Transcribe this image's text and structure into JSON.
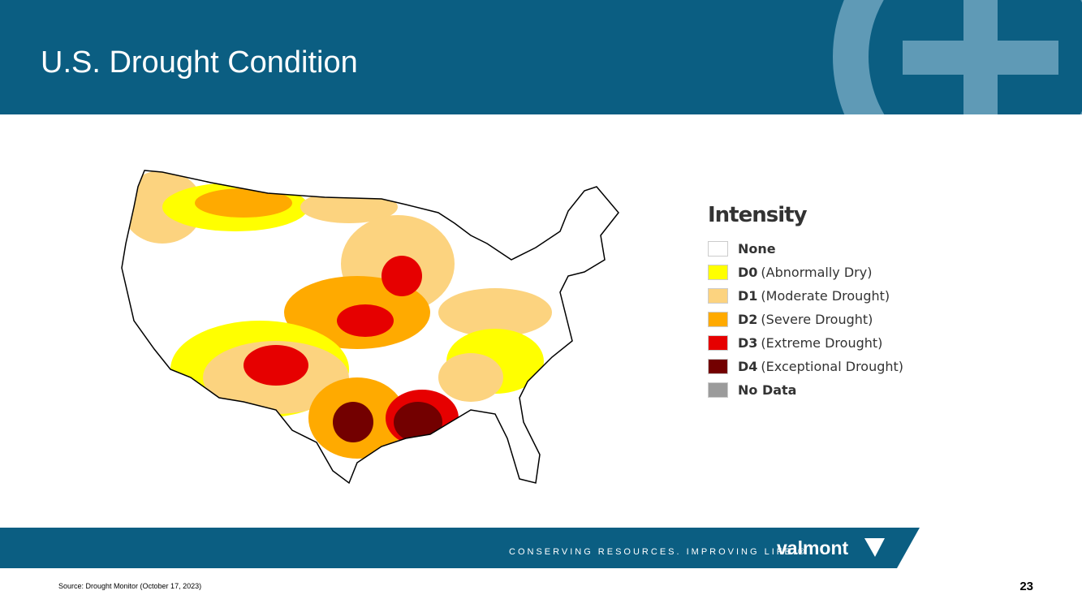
{
  "header": {
    "title": "U.S. Drought Condition"
  },
  "legend": {
    "title": "Intensity",
    "items": [
      {
        "label": "None",
        "color": "#ffffff"
      },
      {
        "code": "D0",
        "label": "(Abnormally Dry)",
        "color": "#ffff00"
      },
      {
        "code": "D1",
        "label": "(Moderate Drought)",
        "color": "#fcd37f"
      },
      {
        "code": "D2",
        "label": "(Severe Drought)",
        "color": "#ffaa00"
      },
      {
        "code": "D3",
        "label": "(Extreme Drought)",
        "color": "#e60000"
      },
      {
        "code": "D4",
        "label": "(Exceptional Drought)",
        "color": "#730000"
      },
      {
        "label": "No Data",
        "color": "#9b9b9b"
      }
    ]
  },
  "footer": {
    "tagline": "CONSERVING RESOURCES. IMPROVING LIFE.®",
    "brand": "valmont"
  },
  "source": "Source: Drought Monitor (October 17, 2023)",
  "page_number": "23"
}
